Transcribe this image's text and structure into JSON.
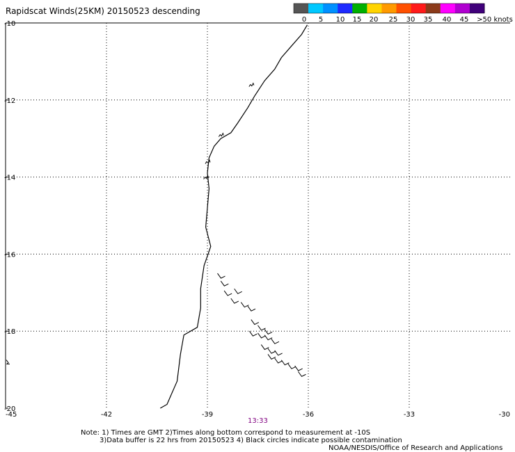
{
  "title": "Rapidscat Winds(25KM) 20150523 descending",
  "legend": {
    "unit": "knots",
    "labels": [
      "0",
      "5",
      "10",
      "15",
      "20",
      "25",
      "30",
      "35",
      "40",
      "45",
      ">50 knots"
    ],
    "colors": [
      "#555555",
      "#00c8ff",
      "#0090ff",
      "#1e2bff",
      "#00b000",
      "#ffd400",
      "#ff9a00",
      "#ff5000",
      "#ff1a1a",
      "#8b3a1a",
      "#ff00ff",
      "#b000d0",
      "#40007a"
    ]
  },
  "map": {
    "lat_labels": [
      "-10",
      "-12",
      "-14",
      "-16",
      "-18",
      "-20"
    ],
    "lon_labels": [
      "-45",
      "-42",
      "-39",
      "-36",
      "-33",
      "-30"
    ],
    "lat_range": [
      -20,
      -10
    ],
    "lon_range": [
      -45,
      -30
    ],
    "grid": "dotted",
    "coastline": [
      [
        -36.03,
        -10.05
      ],
      [
        -36.2,
        -10.3
      ],
      [
        -36.5,
        -10.6
      ],
      [
        -36.8,
        -10.9
      ],
      [
        -37.0,
        -11.2
      ],
      [
        -37.3,
        -11.5
      ],
      [
        -37.6,
        -11.9
      ],
      [
        -37.8,
        -12.2
      ],
      [
        -38.1,
        -12.6
      ],
      [
        -38.3,
        -12.85
      ],
      [
        -38.6,
        -13.0
      ],
      [
        -38.8,
        -13.2
      ],
      [
        -38.95,
        -13.5
      ],
      [
        -39.0,
        -13.9
      ],
      [
        -38.95,
        -14.3
      ],
      [
        -39.0,
        -14.8
      ],
      [
        -39.05,
        -15.3
      ],
      [
        -38.9,
        -15.8
      ],
      [
        -39.1,
        -16.3
      ],
      [
        -39.2,
        -16.9
      ],
      [
        -39.2,
        -17.4
      ],
      [
        -39.3,
        -17.9
      ],
      [
        -39.7,
        -18.1
      ],
      [
        -39.8,
        -18.6
      ],
      [
        -39.9,
        -19.3
      ],
      [
        -40.1,
        -19.7
      ],
      [
        -40.2,
        -19.9
      ],
      [
        -40.4,
        -20.0
      ]
    ],
    "wind_barbs": [
      [
        -38.7,
        -16.5
      ],
      [
        -38.6,
        -16.7
      ],
      [
        -38.2,
        -16.9
      ],
      [
        -38.5,
        -16.95
      ],
      [
        -38.3,
        -17.15
      ],
      [
        -38.0,
        -17.25
      ],
      [
        -37.8,
        -17.35
      ],
      [
        -37.7,
        -17.7
      ],
      [
        -37.5,
        -17.85
      ],
      [
        -37.3,
        -17.95
      ],
      [
        -37.75,
        -18.0
      ],
      [
        -37.5,
        -18.05
      ],
      [
        -37.3,
        -18.1
      ],
      [
        -37.1,
        -18.2
      ],
      [
        -37.4,
        -18.35
      ],
      [
        -37.2,
        -18.45
      ],
      [
        -37.0,
        -18.5
      ],
      [
        -37.2,
        -18.6
      ],
      [
        -37.0,
        -18.7
      ],
      [
        -36.8,
        -18.75
      ],
      [
        -36.6,
        -18.85
      ],
      [
        -36.4,
        -18.9
      ],
      [
        -36.3,
        -19.05
      ]
    ],
    "small_feature": [
      -45.0,
      -18.8
    ]
  },
  "time_label": "13:33",
  "notes": [
    "Note: 1) Times are GMT 2)Times along bottom correspond to measurement at -10S",
    "3)Data buffer is 22 hrs from 20150523 4) Black circles indicate possible contamination",
    "NOAA/NESDIS/Office of Research and Applications"
  ]
}
